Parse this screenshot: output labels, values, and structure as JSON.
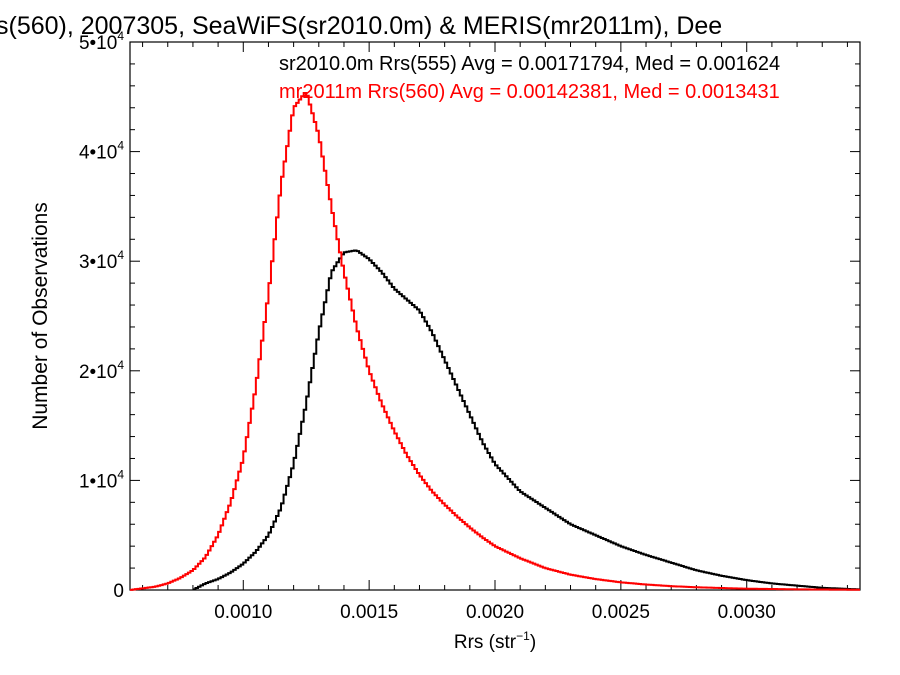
{
  "chart_data": {
    "type": "line",
    "title": "s(560), 2007305, SeaWiFS(sr2010.0m) & MERIS(mr2011m), Dee",
    "xlabel_base": "Rrs (str",
    "xlabel_sup": "−1",
    "xlabel_close": ")",
    "ylabel": "Number of Observations",
    "xlim": [
      0.00055,
      0.00345
    ],
    "ylim": [
      0,
      50000
    ],
    "x_ticks": [
      {
        "value": 0.001,
        "label": "0.0010"
      },
      {
        "value": 0.0015,
        "label": "0.0015"
      },
      {
        "value": 0.002,
        "label": "0.0020"
      },
      {
        "value": 0.0025,
        "label": "0.0025"
      },
      {
        "value": 0.003,
        "label": "0.0030"
      }
    ],
    "y_ticks": [
      {
        "value": 0,
        "label": "0"
      },
      {
        "value": 10000,
        "label": "1•10",
        "sup": "4"
      },
      {
        "value": 20000,
        "label": "2•10",
        "sup": "4"
      },
      {
        "value": 30000,
        "label": "3•10",
        "sup": "4"
      },
      {
        "value": 40000,
        "label": "4•10",
        "sup": "4"
      },
      {
        "value": 50000,
        "label": "5•10",
        "sup": "4"
      }
    ],
    "annotations": [
      {
        "text": "sr2010.0m Rrs(555) Avg = 0.00171794, Med = 0.001624",
        "color": "#000000"
      },
      {
        "text": "mr2011m Rrs(560) Avg = 0.00142381, Med = 0.0013431",
        "color": "#ff0000"
      }
    ],
    "series": [
      {
        "color": "#000000",
        "x": [
          0.0008,
          0.00085,
          0.0009,
          0.00095,
          0.001,
          0.00105,
          0.0011,
          0.00115,
          0.0012,
          0.00125,
          0.0013,
          0.00135,
          0.0014,
          0.00145,
          0.0015,
          0.00155,
          0.0016,
          0.00165,
          0.0017,
          0.00175,
          0.0018,
          0.00185,
          0.0019,
          0.00195,
          0.002,
          0.0021,
          0.0022,
          0.0023,
          0.0024,
          0.0025,
          0.0026,
          0.0027,
          0.0028,
          0.0029,
          0.003,
          0.0031,
          0.0032,
          0.0033,
          0.0034,
          0.00345
        ],
        "y": [
          0,
          600,
          1000,
          1600,
          2400,
          3500,
          5000,
          7500,
          11500,
          17000,
          23500,
          29000,
          30800,
          31000,
          30200,
          29000,
          27500,
          26500,
          25500,
          23500,
          21000,
          18500,
          16000,
          13500,
          11500,
          9000,
          7500,
          6000,
          5000,
          4000,
          3200,
          2500,
          1800,
          1300,
          900,
          600,
          400,
          200,
          100,
          50
        ]
      },
      {
        "color": "#ff0000",
        "x": [
          0.00055,
          0.0006,
          0.00065,
          0.0007,
          0.00075,
          0.0008,
          0.00085,
          0.0009,
          0.00095,
          0.001,
          0.00105,
          0.0011,
          0.00115,
          0.0012,
          0.00125,
          0.0013,
          0.00135,
          0.0014,
          0.00145,
          0.0015,
          0.00155,
          0.0016,
          0.00165,
          0.0017,
          0.00175,
          0.0018,
          0.00185,
          0.0019,
          0.00195,
          0.002,
          0.0021,
          0.0022,
          0.0023,
          0.0024,
          0.0025,
          0.0026,
          0.0027,
          0.0028,
          0.0029,
          0.003,
          0.0032,
          0.00345
        ],
        "y": [
          0,
          150,
          300,
          600,
          1100,
          1800,
          3000,
          5000,
          8000,
          12000,
          18500,
          27000,
          37000,
          44000,
          45500,
          41500,
          35000,
          29000,
          24000,
          20000,
          17000,
          14500,
          12300,
          10500,
          9000,
          7800,
          6700,
          5700,
          4800,
          4000,
          2900,
          2000,
          1400,
          1000,
          700,
          500,
          350,
          250,
          180,
          120,
          60,
          20
        ]
      }
    ]
  }
}
